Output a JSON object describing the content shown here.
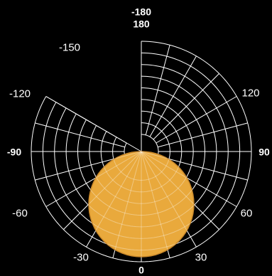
{
  "projection": {
    "type": "polar-azimuthal",
    "colors": {
      "background": "#000000",
      "grid": "#ffffff",
      "globe": "#e9a93c",
      "globe_outline": "#c9882a"
    },
    "missing_sector_degrees": [
      180,
      240
    ],
    "graticule_step_degrees": 15,
    "ring_count": 8
  },
  "labels": {
    "top_minus180": "-180",
    "top_180": "180",
    "minus150": "-150",
    "minus120": "-120",
    "minus90": "-90",
    "minus60": "-60",
    "minus30": "-30",
    "zero": "0",
    "plus30": "30",
    "plus60": "60",
    "plus90": "90",
    "plus120": "120"
  }
}
